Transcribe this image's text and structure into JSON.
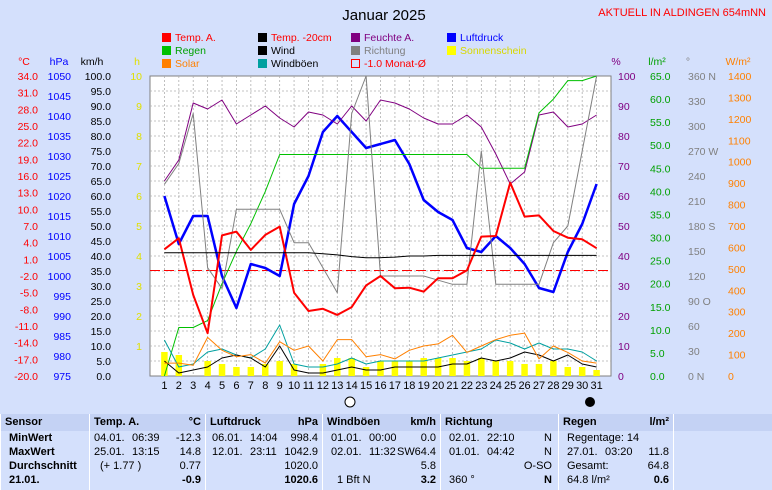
{
  "header": {
    "title": "Januar 2025",
    "station": "AKTUELL IN ALDINGEN 654mNN"
  },
  "units": {
    "temp": "°C",
    "hpa": "hPa",
    "kmh": "km/h",
    "h": "h",
    "pct": "%",
    "lm2": "l/m²",
    "deg": "°",
    "wm2": "W/m²"
  },
  "legend": [
    {
      "label": "Temp. A.",
      "color": "#ff0000",
      "text_color": "#ff0000"
    },
    {
      "label": "Temp. -20cm",
      "color": "#000000",
      "text_color": "#ff0000"
    },
    {
      "label": "Feuchte A.",
      "color": "#800080",
      "text_color": "#800080"
    },
    {
      "label": "Luftdruck",
      "color": "#0000ff",
      "text_color": "#0000ff"
    },
    {
      "label": "Regen",
      "color": "#00c000",
      "text_color": "#00a000"
    },
    {
      "label": "Wind",
      "color": "#000000",
      "text_color": "#000000"
    },
    {
      "label": "Richtung",
      "color": "#808080",
      "text_color": "#808080"
    },
    {
      "label": "Sonnenschein",
      "color": "#ffff00",
      "text_color": "#e0e000"
    },
    {
      "label": "Solar",
      "color": "#ff8000",
      "text_color": "#ff8000"
    },
    {
      "label": "Windböen",
      "color": "#00a0a0",
      "text_color": "#000000"
    },
    {
      "label": "-1.0 Monat-Ø",
      "color": "#ff0000",
      "text_color": "#ff0000"
    }
  ],
  "chart_data": {
    "type": "line",
    "x": [
      1,
      2,
      3,
      4,
      5,
      6,
      7,
      8,
      9,
      10,
      11,
      12,
      13,
      14,
      15,
      16,
      17,
      18,
      19,
      20,
      21,
      22,
      23,
      24,
      25,
      26,
      27,
      28,
      29,
      30,
      31
    ],
    "axes": {
      "temp": {
        "ticks": [
          "34.0",
          "31.0",
          "28.0",
          "25.0",
          "22.0",
          "19.0",
          "16.0",
          "13.0",
          "10.0",
          "7.0",
          "4.0",
          "1.0",
          "-2.0",
          "-5.0",
          "-8.0",
          "-11.0",
          "-14.0",
          "-17.0",
          "-20.0"
        ],
        "range": [
          -20,
          34
        ],
        "color": "#ff0000"
      },
      "pressure": {
        "ticks": [
          "1050",
          "1045",
          "1040",
          "1035",
          "1030",
          "1025",
          "1020",
          "1015",
          "1010",
          "1005",
          "1000",
          "995",
          "990",
          "985",
          "980",
          "975"
        ],
        "range": [
          975,
          1050
        ],
        "color": "#0000ff"
      },
      "wind": {
        "ticks": [
          "100.0",
          "95.0",
          "90.0",
          "85.0",
          "80.0",
          "75.0",
          "70.0",
          "65.0",
          "60.0",
          "55.0",
          "50.0",
          "45.0",
          "40.0",
          "35.0",
          "30.0",
          "25.0",
          "20.0",
          "15.0",
          "10.0",
          "5.0",
          "0.0"
        ],
        "range": [
          0,
          100
        ],
        "color": "#000000"
      },
      "sun": {
        "ticks": [
          "10",
          "9",
          "8",
          "7",
          "6",
          "5",
          "4",
          "3",
          "2",
          "1"
        ],
        "range": [
          0,
          10
        ],
        "color": "#e0e000"
      },
      "humidity": {
        "ticks": [
          "100",
          "90",
          "80",
          "70",
          "60",
          "50",
          "40",
          "30",
          "20",
          "10",
          "0"
        ],
        "range": [
          0,
          100
        ],
        "color": "#800080"
      },
      "rain": {
        "ticks": [
          "65.0",
          "60.0",
          "55.0",
          "50.0",
          "45.0",
          "40.0",
          "35.0",
          "30.0",
          "25.0",
          "20.0",
          "15.0",
          "10.0",
          "5.0",
          "0.0"
        ],
        "range": [
          0,
          65
        ],
        "color": "#00a000"
      },
      "direction": {
        "ticks": [
          "360 N",
          "330",
          "300",
          "270 W",
          "240",
          "210",
          "180 S",
          "150",
          "120",
          "90 O",
          "60",
          "30",
          "0 N"
        ],
        "range": [
          0,
          360
        ],
        "color": "#808080"
      },
      "solar": {
        "ticks": [
          "1400",
          "1300",
          "1200",
          "1100",
          "1000",
          "900",
          "800",
          "700",
          "600",
          "500",
          "400",
          "300",
          "200",
          "100",
          "0"
        ],
        "range": [
          0,
          1400
        ],
        "color": "#ff8000"
      }
    },
    "month_avg_temp": -1.0,
    "series": [
      {
        "name": "Luftdruck",
        "axis": "pressure",
        "color": "#0000ff",
        "width": 2.5,
        "values": [
          1020,
          1008,
          1015,
          1015,
          1000,
          992,
          1003,
          1002,
          1000,
          1018,
          1025,
          1036,
          1040,
          1036,
          1032,
          1033,
          1034,
          1028,
          1019,
          1016,
          1014,
          1007,
          1006,
          1010,
          1007,
          1003,
          997,
          996,
          1006,
          1013,
          1023
        ]
      },
      {
        "name": "Feuchte A.",
        "axis": "humidity",
        "color": "#800080",
        "width": 1,
        "values": [
          65,
          72,
          91,
          89,
          92,
          84,
          87,
          90,
          86,
          83,
          88,
          87,
          84,
          90,
          85,
          92,
          91,
          89,
          86,
          84,
          84,
          87,
          83,
          74,
          64,
          68,
          87,
          88,
          83,
          84,
          87
        ]
      },
      {
        "name": "Regen",
        "axis": "rain",
        "color": "#00c000",
        "width": 1,
        "values": [
          0,
          10.5,
          10.5,
          12,
          20,
          27,
          33,
          40,
          48,
          48,
          48,
          48,
          48,
          48,
          48,
          48,
          48,
          48,
          48,
          48,
          48,
          48,
          45,
          45,
          45,
          45,
          57,
          60,
          64,
          64,
          65
        ]
      },
      {
        "name": "Richtung",
        "axis": "direction",
        "color": "#808080",
        "width": 1,
        "values": [
          230,
          255,
          315,
          130,
          105,
          200,
          200,
          200,
          200,
          160,
          160,
          130,
          100,
          315,
          360,
          120,
          120,
          120,
          120,
          115,
          110,
          110,
          270,
          110,
          110,
          110,
          110,
          160,
          180,
          270,
          360
        ]
      },
      {
        "name": "Temp. A.",
        "axis": "temp",
        "color": "#ff0000",
        "width": 2,
        "values": [
          2.8,
          4.8,
          -5.4,
          -12.3,
          5.3,
          6.0,
          2.7,
          5.4,
          6.9,
          -5.0,
          -8.3,
          -7.9,
          -9.0,
          -7.6,
          -3.7,
          -2.0,
          -4.2,
          -4.1,
          -4.8,
          -2.4,
          -2.4,
          -1.0,
          5.1,
          5.2,
          14.8,
          8.7,
          8.9,
          6.1,
          4.9,
          4.6,
          3.0
        ]
      },
      {
        "name": "Temp. -20cm",
        "axis": "temp",
        "color": "#000000",
        "width": 1,
        "values": [
          2.2,
          2.2,
          2.2,
          2.2,
          2.2,
          2.2,
          2.2,
          2.2,
          2.2,
          2.2,
          2.2,
          2.0,
          1.8,
          1.5,
          1.3,
          1.3,
          1.4,
          1.6,
          1.6,
          1.7,
          1.7,
          1.7,
          1.7,
          1.7,
          1.7,
          1.7,
          1.7,
          1.7,
          1.7,
          1.7,
          1.7
        ]
      },
      {
        "name": "Windböen",
        "axis": "wind",
        "color": "#00a0a0",
        "width": 1,
        "values": [
          12,
          3,
          4,
          8,
          9,
          7,
          6,
          9,
          17,
          4,
          3,
          3,
          4,
          6,
          4,
          5,
          5,
          5,
          5,
          6,
          7,
          8,
          9,
          12,
          11,
          9,
          11,
          9,
          9,
          8,
          5
        ]
      },
      {
        "name": "Wind",
        "axis": "wind",
        "color": "#000000",
        "width": 1,
        "values": [
          5,
          1,
          2,
          3,
          6,
          7,
          6,
          3,
          10,
          2,
          1,
          1,
          2,
          3,
          2,
          2,
          3,
          3,
          3,
          3,
          4,
          4,
          6,
          5,
          6,
          8,
          7,
          5,
          7,
          4,
          3
        ]
      },
      {
        "name": "Solar",
        "axis": "solar",
        "color": "#ff8000",
        "width": 1,
        "values": [
          60,
          60,
          50,
          180,
          120,
          90,
          100,
          60,
          160,
          120,
          140,
          70,
          170,
          170,
          90,
          100,
          80,
          120,
          140,
          150,
          190,
          110,
          140,
          170,
          190,
          200,
          80,
          140,
          110,
          70,
          60
        ]
      }
    ],
    "bars": {
      "name": "Sonnenschein",
      "axis": "sun",
      "color": "#ffff00",
      "values": [
        0.8,
        0.7,
        0.0,
        0.5,
        0.4,
        0.3,
        0.3,
        0.4,
        0.5,
        0.4,
        0.0,
        0.4,
        0.6,
        0.6,
        0.3,
        0.5,
        0.5,
        0.5,
        0.6,
        0.6,
        0.6,
        0.5,
        0.6,
        0.5,
        0.5,
        0.4,
        0.4,
        0.5,
        0.3,
        0.3,
        0.2
      ]
    },
    "x_ticks": [
      "1",
      "2",
      "3",
      "4",
      "5",
      "6",
      "7",
      "8",
      "9",
      "10",
      "11",
      "12",
      "13",
      "14",
      "15",
      "16",
      "17",
      "18",
      "19",
      "20",
      "21",
      "22",
      "23",
      "24",
      "25",
      "26",
      "27",
      "28",
      "29",
      "30",
      "31"
    ]
  },
  "table": {
    "sensor": {
      "header": "Sensor",
      "rows": [
        "MinWert",
        "MaxWert",
        "Durchschnitt",
        "21.01."
      ]
    },
    "temp": {
      "header": "Temp. A.",
      "unit": "°C",
      "rows": [
        [
          "04.01.",
          "06:39",
          "-12.3"
        ],
        [
          "25.01.",
          "13:15",
          "14.8"
        ],
        [
          "",
          "(+ 1.77 )",
          "0.77"
        ],
        [
          "",
          "",
          "-0.9"
        ]
      ]
    },
    "pressure": {
      "header": "Luftdruck",
      "unit": "hPa",
      "rows": [
        [
          "06.01.",
          "14:04",
          "998.4"
        ],
        [
          "12.01.",
          "23:11",
          "1042.9"
        ],
        [
          "",
          "",
          "1020.0"
        ],
        [
          "",
          "",
          "1020.6"
        ]
      ]
    },
    "gusts": {
      "header": "Windböen",
      "unit": "km/h",
      "rows": [
        [
          "01.01.",
          "00:00",
          "",
          "0.0"
        ],
        [
          "02.01.",
          "11:32",
          "SW",
          "64.4"
        ],
        [
          "",
          "",
          "",
          "5.8"
        ],
        [
          "",
          "1 Bft N",
          "",
          "3.2"
        ]
      ]
    },
    "direction": {
      "header": "Richtung",
      "rows": [
        [
          "02.01.",
          "22:10",
          "N"
        ],
        [
          "01.01.",
          "04:42",
          "N"
        ],
        [
          "",
          "",
          "O-SO"
        ],
        [
          "360 °",
          "",
          "N"
        ]
      ]
    },
    "rain": {
      "header": "Regen",
      "unit": "l/m²",
      "rows": [
        [
          "Regentage: 14",
          ""
        ],
        [
          "27.01.",
          "03:20",
          "11.8"
        ],
        [
          "Gesamt:",
          "",
          "64.8"
        ],
        [
          "64.8 l/m²",
          "",
          "0.6"
        ]
      ]
    }
  }
}
